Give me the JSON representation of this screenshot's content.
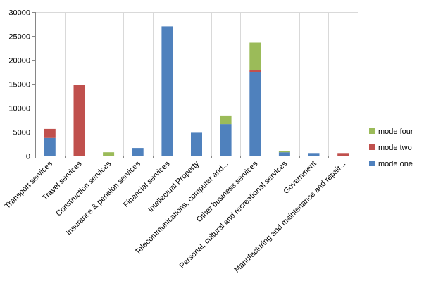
{
  "chart_data": {
    "type": "bar",
    "stacked": true,
    "categories": [
      "Transport services",
      "Travel services",
      "Construction services",
      "Insurance & pension services",
      "Financial services",
      "Intellectual Property",
      "Telecommunications, computer and...",
      "Other business services",
      "Personal, cultural and recreational services",
      "Government",
      "Manufacturing and maintenance and repair..."
    ],
    "series": [
      {
        "name": "mode one",
        "color": "#4F81BD",
        "values": [
          3700,
          0,
          0,
          1600,
          27000,
          4800,
          6600,
          17500,
          700,
          550,
          0
        ]
      },
      {
        "name": "mode two",
        "color": "#C0504D",
        "values": [
          1900,
          14800,
          0,
          0,
          0,
          0,
          0,
          300,
          0,
          0,
          550
        ]
      },
      {
        "name": "mode four",
        "color": "#9BBB59",
        "values": [
          0,
          0,
          700,
          0,
          0,
          0,
          1800,
          5800,
          250,
          0,
          0
        ]
      }
    ],
    "legend_order": [
      "mode four",
      "mode two",
      "mode one"
    ],
    "y_ticks": [
      "0",
      "5000",
      "10000",
      "15000",
      "20000",
      "25000",
      "30000"
    ],
    "ylim": [
      0,
      30000
    ],
    "grid": "vertical",
    "legend_position": "right",
    "title": "",
    "xlabel": "",
    "ylabel": ""
  }
}
